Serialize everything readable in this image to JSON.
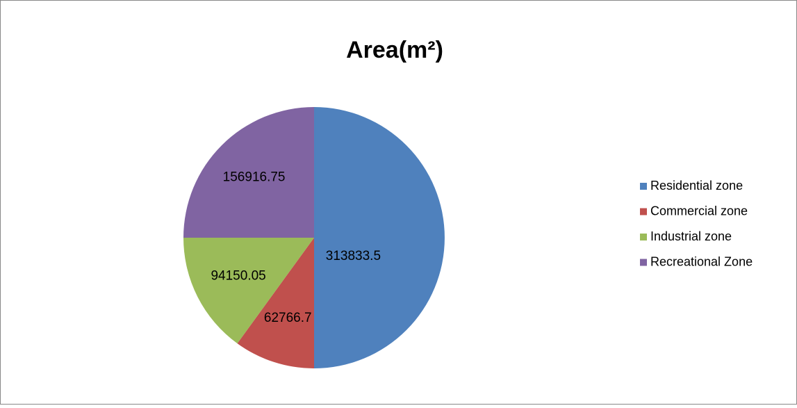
{
  "chart_data": {
    "type": "pie",
    "title": "Area(m²)",
    "categories": [
      "Residential zone",
      "Commercial zone",
      "Industrial zone",
      "Recreational Zone"
    ],
    "values": [
      313833.5,
      62766.7,
      94150.05,
      156916.75
    ],
    "colors": [
      "#4f81bd",
      "#c0504d",
      "#9bbb59",
      "#8064a2"
    ],
    "legend": "right"
  }
}
